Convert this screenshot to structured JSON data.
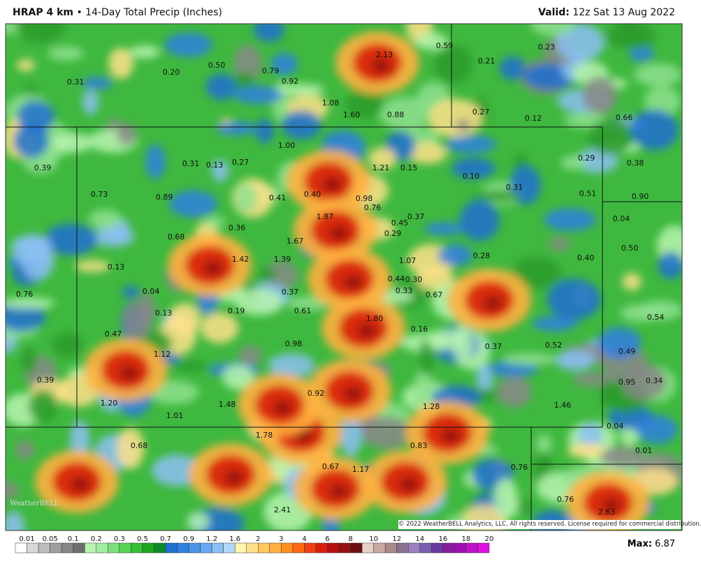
{
  "header": {
    "model": "HRAP 4 km",
    "separator": "•",
    "title": "14-Day Total Precip (Inches)",
    "valid_label": "Valid:",
    "valid": "12z Sat 13 Aug 2022"
  },
  "map": {
    "labels": [
      "0.31",
      "0.20",
      "0.50",
      "0.79",
      "0.92",
      "2.13",
      "0.59",
      "0.23",
      "0.21",
      "1.08",
      "1.60",
      "0.88",
      "0.27",
      "0.12",
      "0.66",
      "1.00",
      "0.39",
      "0.31",
      "0.13",
      "0.27",
      "1.21",
      "0.15",
      "0.29",
      "0.38",
      "0.10",
      "0.31",
      "0.73",
      "0.89",
      "0.41",
      "0.40",
      "0.98",
      "0.76",
      "0.51",
      "0.90",
      "1.87",
      "0.45",
      "0.37",
      "0.04",
      "0.36",
      "0.29",
      "0.68",
      "1.67",
      "0.50",
      "1.42",
      "1.39",
      "1.07",
      "0.28",
      "0.40",
      "0.13",
      "0.44",
      "0.30",
      "0.76",
      "0.04",
      "0.37",
      "0.33",
      "0.67",
      "0.13",
      "0.19",
      "0.61",
      "1.80",
      "0.16",
      "0.54",
      "0.47",
      "0.98",
      "0.37",
      "0.52",
      "0.49",
      "1.12",
      "0.39",
      "0.95",
      "0.34",
      "0.92",
      "1.20",
      "1.48",
      "1.28",
      "1.46",
      "1.01",
      "0.04",
      "1.78",
      "0.68",
      "0.83",
      "0.01",
      "0.67",
      "1.17",
      "0.76",
      "0.76",
      "2.41",
      "2.63"
    ],
    "logo": "WeatherBELL",
    "copyright": "© 2022 WeatherBELL Analytics, LLC. All rights reserved. License required for commercial distribution."
  },
  "legend": {
    "labels": [
      "0.01",
      "0.05",
      "0.1",
      "0.2",
      "0.3",
      "0.5",
      "0.7",
      "0.9",
      "1.2",
      "1.6",
      "2",
      "3",
      "4",
      "6",
      "8",
      "10",
      "12",
      "14",
      "16",
      "18",
      "20"
    ],
    "colors": [
      "#ffffff",
      "#d9d9d9",
      "#bdbdbd",
      "#a0a0a0",
      "#878787",
      "#6e6e6e",
      "#b9f5b0",
      "#a0eda0",
      "#7be07b",
      "#55d455",
      "#34c234",
      "#1fa51f",
      "#0f8a2a",
      "#1f6fd0",
      "#2f82e0",
      "#4a96e8",
      "#6aa8f0",
      "#8cc0f5",
      "#b0d8fa",
      "#fff4b0",
      "#ffe08a",
      "#ffc860",
      "#ffb040",
      "#ff9020",
      "#ff6a10",
      "#f04010",
      "#d81e0a",
      "#b80f0f",
      "#961010",
      "#6e1010",
      "#e8d0c8",
      "#c9a8a0",
      "#a88a8a",
      "#8a7090",
      "#9a80c0",
      "#7a60b0",
      "#6a3aa0",
      "#8a1aa0",
      "#a010b0",
      "#c010c8",
      "#e010e0"
    ],
    "max_label": "Max:",
    "max": "6.87"
  }
}
